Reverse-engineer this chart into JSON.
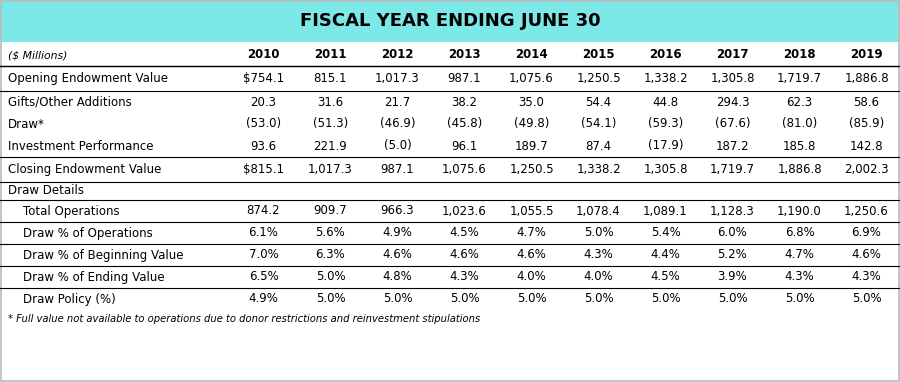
{
  "title": "FISCAL YEAR ENDING JUNE 30",
  "header_bg": "#7de8e8",
  "years": [
    "2010",
    "2011",
    "2012",
    "2013",
    "2014",
    "2015",
    "2016",
    "2017",
    "2018",
    "2019"
  ],
  "col_header": "($ Millions)",
  "rows": [
    {
      "label": "Opening Endowment Value",
      "values": [
        "$754.1",
        "815.1",
        "1,017.3",
        "987.1",
        "1,075.6",
        "1,250.5",
        "1,338.2",
        "1,305.8",
        "1,719.7",
        "1,886.8"
      ],
      "indent": false,
      "border_top": true,
      "border_bottom": true,
      "section_header": false
    },
    {
      "label": "Gifts/Other Additions",
      "values": [
        "20.3",
        "31.6",
        "21.7",
        "38.2",
        "35.0",
        "54.4",
        "44.8",
        "294.3",
        "62.3",
        "58.6"
      ],
      "indent": false,
      "border_top": false,
      "border_bottom": false,
      "section_header": false
    },
    {
      "label": "Draw*",
      "values": [
        "(53.0)",
        "(51.3)",
        "(46.9)",
        "(45.8)",
        "(49.8)",
        "(54.1)",
        "(59.3)",
        "(67.6)",
        "(81.0)",
        "(85.9)"
      ],
      "indent": false,
      "border_top": false,
      "border_bottom": false,
      "section_header": false
    },
    {
      "label": "Investment Performance",
      "values": [
        "93.6",
        "221.9",
        "(5.0)",
        "96.1",
        "189.7",
        "87.4",
        "(17.9)",
        "187.2",
        "185.8",
        "142.8"
      ],
      "indent": false,
      "border_top": false,
      "border_bottom": false,
      "section_header": false
    },
    {
      "label": "Closing Endowment Value",
      "values": [
        "$815.1",
        "1,017.3",
        "987.1",
        "1,075.6",
        "1,250.5",
        "1,338.2",
        "1,305.8",
        "1,719.7",
        "1,886.8",
        "2,002.3"
      ],
      "indent": false,
      "border_top": true,
      "border_bottom": true,
      "section_header": false
    },
    {
      "label": "Draw Details",
      "values": [
        "",
        "",
        "",
        "",
        "",
        "",
        "",
        "",
        "",
        ""
      ],
      "indent": false,
      "border_top": false,
      "border_bottom": false,
      "section_header": true
    },
    {
      "label": "    Total Operations",
      "values": [
        "874.2",
        "909.7",
        "966.3",
        "1,023.6",
        "1,055.5",
        "1,078.4",
        "1,089.1",
        "1,128.3",
        "1,190.0",
        "1,250.6"
      ],
      "indent": true,
      "border_top": true,
      "border_bottom": true,
      "section_header": false
    },
    {
      "label": "    Draw % of Operations",
      "values": [
        "6.1%",
        "5.6%",
        "4.9%",
        "4.5%",
        "4.7%",
        "5.0%",
        "5.4%",
        "6.0%",
        "6.8%",
        "6.9%"
      ],
      "indent": true,
      "border_top": false,
      "border_bottom": true,
      "section_header": false
    },
    {
      "label": "    Draw % of Beginning Value",
      "values": [
        "7.0%",
        "6.3%",
        "4.6%",
        "4.6%",
        "4.6%",
        "4.3%",
        "4.4%",
        "5.2%",
        "4.7%",
        "4.6%"
      ],
      "indent": true,
      "border_top": false,
      "border_bottom": true,
      "section_header": false
    },
    {
      "label": "    Draw % of Ending Value",
      "values": [
        "6.5%",
        "5.0%",
        "4.8%",
        "4.3%",
        "4.0%",
        "4.0%",
        "4.5%",
        "3.9%",
        "4.3%",
        "4.3%"
      ],
      "indent": true,
      "border_top": false,
      "border_bottom": true,
      "section_header": false
    },
    {
      "label": "    Draw Policy (%)",
      "values": [
        "4.9%",
        "5.0%",
        "5.0%",
        "5.0%",
        "5.0%",
        "5.0%",
        "5.0%",
        "5.0%",
        "5.0%",
        "5.0%"
      ],
      "indent": true,
      "border_top": false,
      "border_bottom": false,
      "section_header": false
    }
  ],
  "footnote": "* Full value not available to operations due to donor restrictions and reinvestment stipulations"
}
